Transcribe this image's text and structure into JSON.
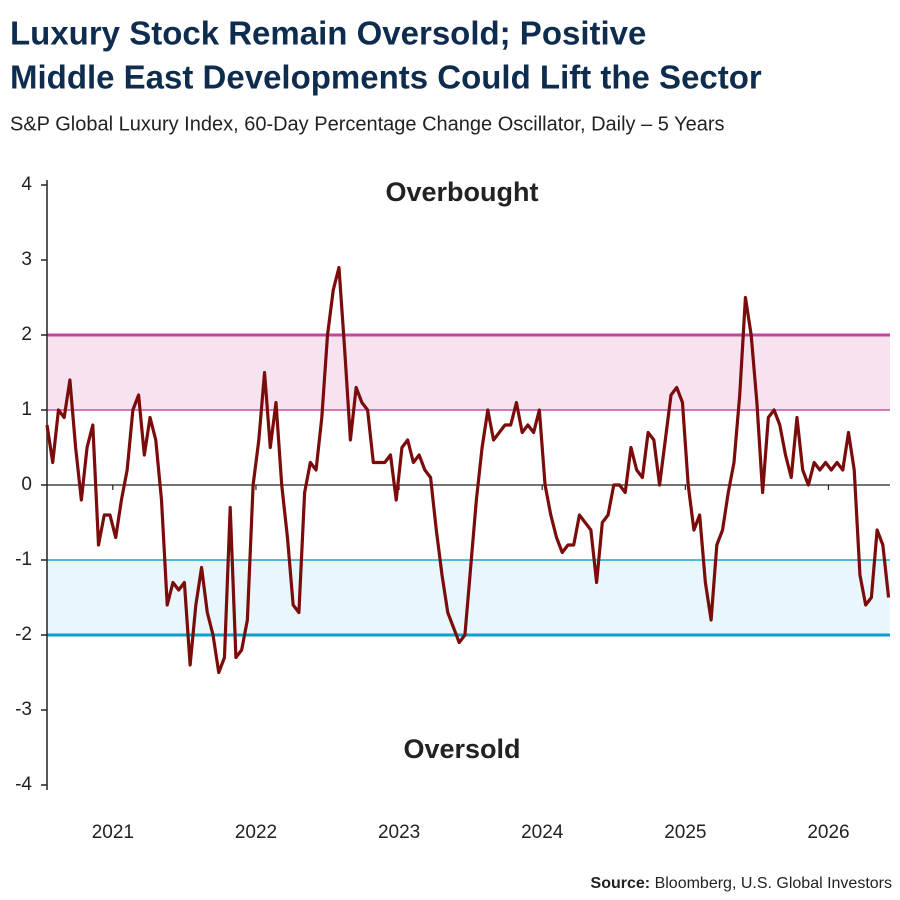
{
  "chart_data": {
    "type": "line",
    "title": [
      "Luxury Stock Remain Oversold; Positive",
      "Middle East Developments Could Lift the Sector"
    ],
    "subtitle": "S&P Global Luxury Index, 60-Day Percentage Change Oscillator, Daily – 5 Years",
    "annotations": {
      "upper": "Overbought",
      "lower": "Oversold"
    },
    "source_label": "Source:",
    "source": "Bloomberg, U.S. Global Investors",
    "overbought_band": [
      1,
      2
    ],
    "overbought_color": "#c8449b",
    "oversold_band": [
      -2,
      -1
    ],
    "oversold_color": "#0a9fd0",
    "x": [
      2020.54,
      2020.58,
      2020.62,
      2020.66,
      2020.7,
      2020.74,
      2020.78,
      2020.82,
      2020.86,
      2020.9,
      2020.94,
      2020.98,
      2021.02,
      2021.06,
      2021.1,
      2021.14,
      2021.18,
      2021.22,
      2021.26,
      2021.3,
      2021.34,
      2021.38,
      2021.42,
      2021.46,
      2021.5,
      2021.54,
      2021.58,
      2021.62,
      2021.66,
      2021.7,
      2021.74,
      2021.78,
      2021.82,
      2021.86,
      2021.9,
      2021.94,
      2021.98,
      2022.02,
      2022.06,
      2022.1,
      2022.14,
      2022.18,
      2022.22,
      2022.26,
      2022.3,
      2022.34,
      2022.38,
      2022.42,
      2022.46,
      2022.5,
      2022.54,
      2022.58,
      2022.62,
      2022.66,
      2022.7,
      2022.74,
      2022.78,
      2022.82,
      2022.86,
      2022.9,
      2022.94,
      2022.98,
      2023.02,
      2023.06,
      2023.1,
      2023.14,
      2023.18,
      2023.22,
      2023.26,
      2023.3,
      2023.34,
      2023.38,
      2023.42,
      2023.46,
      2023.5,
      2023.54,
      2023.58,
      2023.62,
      2023.66,
      2023.7,
      2023.74,
      2023.78,
      2023.82,
      2023.86,
      2023.9,
      2023.94,
      2023.98,
      2024.02,
      2024.06,
      2024.1,
      2024.14,
      2024.18,
      2024.22,
      2024.26,
      2024.3,
      2024.34,
      2024.38,
      2024.42,
      2024.46,
      2024.5,
      2024.54,
      2024.58,
      2024.62,
      2024.66,
      2024.7,
      2024.74,
      2024.78,
      2024.82,
      2024.86,
      2024.9,
      2024.94,
      2024.98,
      2025.02,
      2025.06,
      2025.1,
      2025.14,
      2025.18,
      2025.22,
      2025.26,
      2025.3,
      2025.34,
      2025.38,
      2025.42,
      2025.46,
      2025.5,
      2025.54,
      2025.58,
      2025.62,
      2025.66,
      2025.7,
      2025.74,
      2025.78,
      2025.82,
      2025.86,
      2025.9,
      2025.94,
      2025.98,
      2026.02,
      2026.06,
      2026.1,
      2026.14,
      2026.18,
      2026.22,
      2026.26,
      2026.3,
      2026.34,
      2026.38,
      2026.42
    ],
    "series": [
      {
        "color": "#7a0c0c",
        "values": [
          0.8,
          0.3,
          1.0,
          0.9,
          1.4,
          0.5,
          -0.2,
          0.5,
          0.8,
          -0.8,
          -0.4,
          -0.4,
          -0.7,
          -0.2,
          0.2,
          1.0,
          1.2,
          0.4,
          0.9,
          0.6,
          -0.2,
          -1.6,
          -1.3,
          -1.4,
          -1.3,
          -2.4,
          -1.6,
          -1.1,
          -1.7,
          -2.0,
          -2.5,
          -2.3,
          -0.3,
          -2.3,
          -2.2,
          -1.8,
          0.0,
          0.6,
          1.5,
          0.5,
          1.1,
          0.0,
          -0.7,
          -1.6,
          -1.7,
          -0.1,
          0.3,
          0.2,
          0.9,
          2.0,
          2.6,
          2.9,
          1.8,
          0.6,
          1.3,
          1.1,
          1.0,
          0.3,
          0.3,
          0.3,
          0.4,
          -0.2,
          0.5,
          0.6,
          0.3,
          0.4,
          0.2,
          0.1,
          -0.6,
          -1.2,
          -1.7,
          -1.9,
          -2.1,
          -2.0,
          -1.1,
          -0.2,
          0.5,
          1.0,
          0.6,
          0.7,
          0.8,
          0.8,
          1.1,
          0.7,
          0.8,
          0.7,
          1.0,
          0.0,
          -0.4,
          -0.7,
          -0.9,
          -0.8,
          -0.8,
          -0.4,
          -0.5,
          -0.6,
          -1.3,
          -0.5,
          -0.4,
          0.0,
          0.0,
          -0.1,
          0.5,
          0.2,
          0.1,
          0.7,
          0.6,
          0.0,
          0.6,
          1.2,
          1.3,
          1.1,
          0.0,
          -0.6,
          -0.4,
          -1.3,
          -1.8,
          -0.8,
          -0.6,
          -0.1,
          0.3,
          1.2,
          2.5,
          2.0,
          1.1,
          -0.1,
          0.9,
          1.0,
          0.8,
          0.4,
          0.1,
          0.9,
          0.2,
          0.0,
          0.3,
          0.2,
          0.3,
          0.2,
          0.3,
          0.2,
          0.7,
          0.2,
          -1.2,
          -1.6,
          -1.5,
          -0.6,
          -0.8,
          -1.5
        ]
      }
    ],
    "xlim": [
      2020.54,
      2026.43
    ],
    "xticks": [
      2021,
      2022,
      2023,
      2024,
      2025,
      2026
    ],
    "ylim": [
      -4,
      4
    ],
    "yticks": [
      -4,
      -3,
      -2,
      -1,
      0,
      1,
      2,
      3,
      4
    ]
  }
}
